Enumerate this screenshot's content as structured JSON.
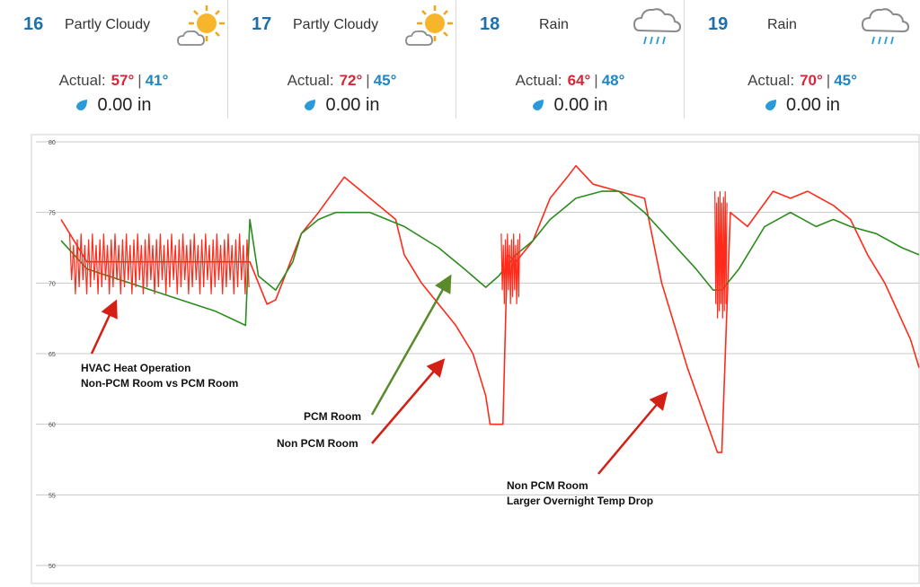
{
  "weather": {
    "actual_label": "Actual:",
    "days": [
      {
        "day": "16",
        "condition": "Partly Cloudy",
        "icon": "partly-cloudy-icon",
        "hi": "57°",
        "lo": "41°",
        "precip": "0.00 in"
      },
      {
        "day": "17",
        "condition": "Partly Cloudy",
        "icon": "partly-cloudy-icon",
        "hi": "72°",
        "lo": "45°",
        "precip": "0.00 in"
      },
      {
        "day": "18",
        "condition": "Rain",
        "icon": "rain-icon",
        "hi": "64°",
        "lo": "48°",
        "precip": "0.00 in"
      },
      {
        "day": "19",
        "condition": "Rain",
        "icon": "rain-icon",
        "hi": "70°",
        "lo": "45°",
        "precip": "0.00 in"
      }
    ]
  },
  "colors": {
    "non_pcm": "#ff2a1a",
    "pcm": "#2b8c1e",
    "hi": "#d6283a",
    "lo": "#1f87c6"
  },
  "chart_data": {
    "type": "line",
    "ylim": [
      50,
      80
    ],
    "yticks": [
      50,
      55,
      60,
      65,
      70,
      75,
      80
    ],
    "xlim": [
      0,
      100
    ],
    "grid": true,
    "series": [
      {
        "name": "Non PCM Room",
        "x": [
          0,
          3,
          22,
          24,
          25,
          28,
          30,
          33,
          37,
          39,
          40,
          42,
          44,
          46,
          48,
          49.5,
          50,
          51.5,
          52,
          53,
          55,
          57,
          59,
          60,
          62,
          65,
          68,
          70,
          73,
          76.5,
          77,
          78,
          80,
          83,
          85,
          87,
          90,
          92,
          94,
          96,
          99,
          100
        ],
        "y": [
          74.5,
          71.5,
          71.5,
          68.5,
          68.8,
          73.5,
          75,
          77.5,
          75.5,
          74.5,
          72,
          70,
          68.5,
          67,
          65,
          62,
          60,
          60,
          72,
          71.5,
          73,
          76,
          77.5,
          78.3,
          77,
          76.5,
          76,
          70,
          64,
          58,
          58,
          75,
          74,
          76.5,
          76,
          76.5,
          75.5,
          74.5,
          72,
          70,
          66,
          64
        ]
      },
      {
        "name": "PCM Room",
        "x": [
          0,
          3,
          8,
          13,
          18,
          21.5,
          22,
          23,
          25,
          27,
          28,
          29,
          30,
          32,
          34,
          36,
          40,
          44,
          47,
          49.5,
          51,
          53,
          55,
          57,
          58,
          60,
          63,
          65,
          68,
          71,
          74,
          76,
          77,
          79,
          82,
          85,
          88,
          90,
          92,
          95,
          98,
          100
        ],
        "y": [
          73,
          71,
          70,
          69,
          68,
          67,
          74.5,
          70.5,
          69.5,
          71.5,
          73.5,
          74,
          74.5,
          75,
          75,
          75,
          74,
          72.5,
          71,
          69.7,
          70.5,
          72,
          73,
          74.5,
          75,
          76,
          76.5,
          76.5,
          75,
          73,
          71,
          69.5,
          69.5,
          71,
          74,
          75,
          74,
          74.5,
          74,
          73.5,
          72.5,
          72
        ]
      }
    ],
    "annotations": [
      {
        "lines": [
          "HVAC Heat Operation",
          "Non-PCM Room vs PCM Room"
        ]
      },
      {
        "lines": [
          "PCM Room"
        ]
      },
      {
        "lines": [
          "Non PCM Room"
        ]
      },
      {
        "lines": [
          "Non PCM Room",
          "Larger Overnight Temp Drop"
        ]
      }
    ]
  }
}
